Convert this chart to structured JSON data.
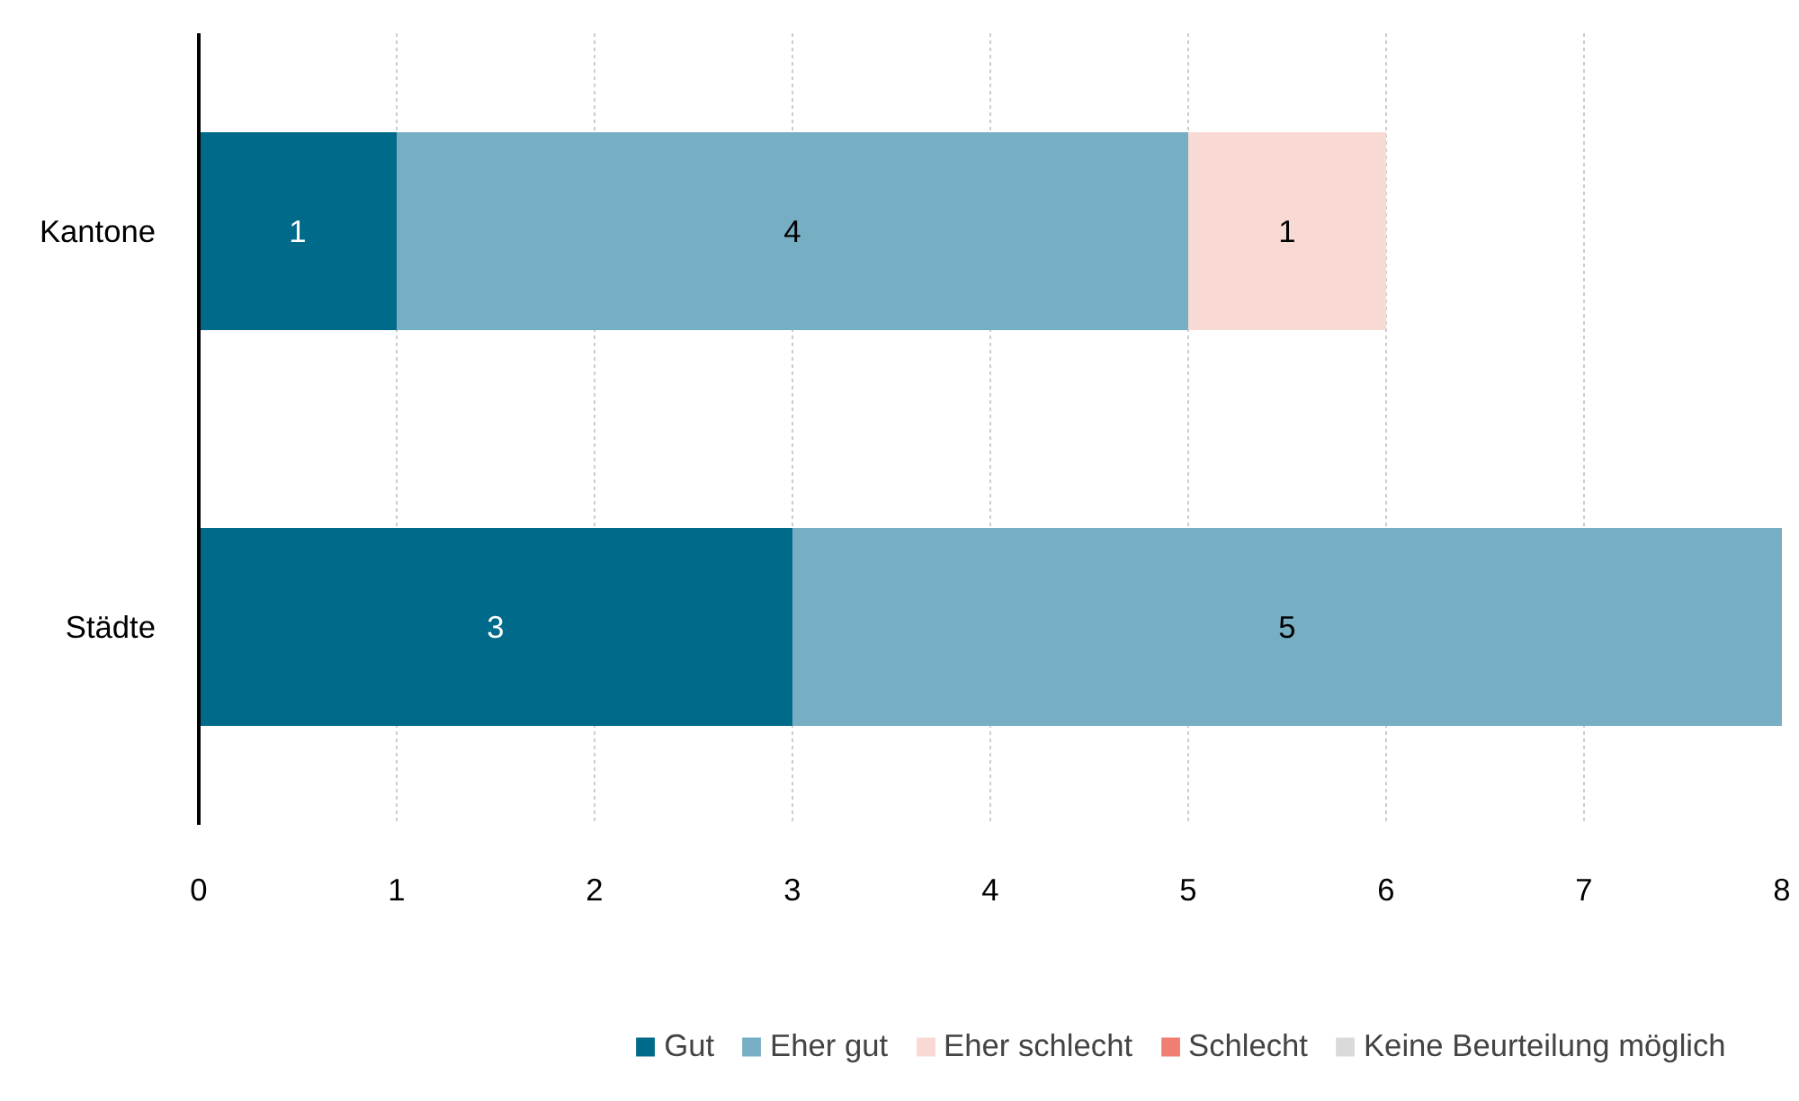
{
  "chart_data": {
    "type": "bar",
    "orientation": "horizontal",
    "stacked": true,
    "categories": [
      "Kantone",
      "Städte"
    ],
    "series": [
      {
        "name": "Gut",
        "color": "#006a8a",
        "values": [
          1,
          3
        ],
        "value_labels": [
          "1",
          "3"
        ]
      },
      {
        "name": "Eher gut",
        "color": "#76afc4",
        "values": [
          4,
          5
        ],
        "value_labels": [
          "4",
          "5"
        ]
      },
      {
        "name": "Eher schlecht",
        "color": "#f9d9d3",
        "values": [
          1,
          0
        ],
        "value_labels": [
          "1",
          null
        ]
      },
      {
        "name": "Schlecht",
        "color": "#ee7f72",
        "values": [
          0,
          0
        ],
        "value_labels": [
          null,
          null
        ]
      },
      {
        "name": "Keine Beurteilung möglich",
        "color": "#dadada",
        "values": [
          0,
          0
        ],
        "value_labels": [
          null,
          null
        ]
      }
    ],
    "xlim": [
      0,
      8
    ],
    "xticks": [
      0,
      1,
      2,
      3,
      4,
      5,
      6,
      7,
      8
    ],
    "grid": "x",
    "legend": "bottom"
  }
}
